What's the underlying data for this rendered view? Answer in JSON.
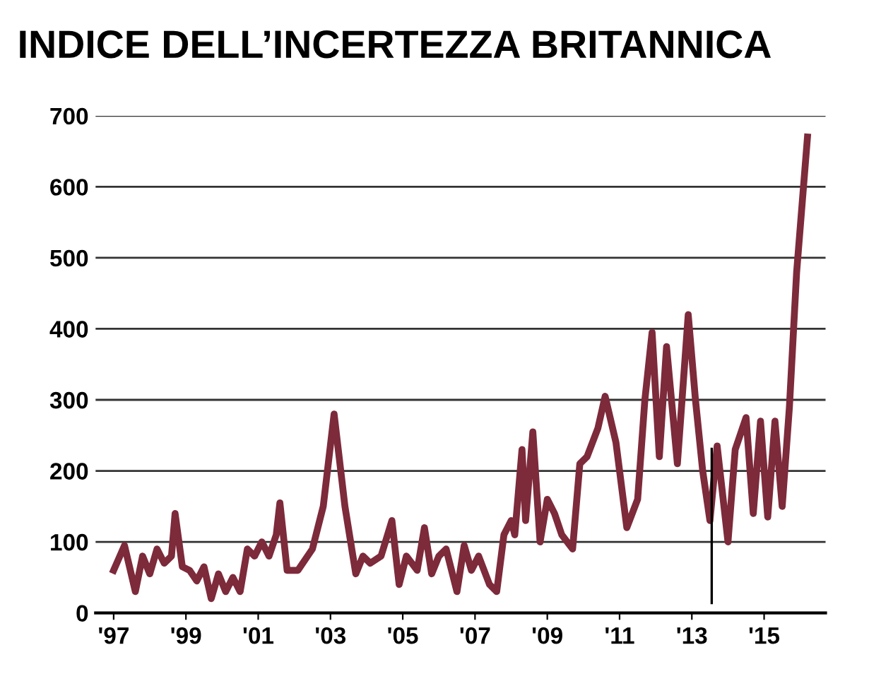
{
  "chart_data": {
    "type": "line",
    "title": "INDICE DELL’INCERTEZZA BRITANNICA",
    "x": [
      1997.0,
      1997.3,
      1997.6,
      1997.8,
      1998.0,
      1998.2,
      1998.4,
      1998.6,
      1998.7,
      1998.9,
      1999.1,
      1999.3,
      1999.5,
      1999.7,
      1999.9,
      2000.1,
      2000.3,
      2000.5,
      2000.7,
      2000.9,
      2001.1,
      2001.3,
      2001.5,
      2001.6,
      2001.8,
      2002.1,
      2002.5,
      2002.8,
      2003.1,
      2003.4,
      2003.7,
      2003.9,
      2004.1,
      2004.4,
      2004.7,
      2004.9,
      2005.1,
      2005.4,
      2005.6,
      2005.8,
      2006.0,
      2006.2,
      2006.5,
      2006.7,
      2006.9,
      2007.1,
      2007.4,
      2007.6,
      2007.8,
      2008.0,
      2008.1,
      2008.3,
      2008.4,
      2008.6,
      2008.8,
      2009.0,
      2009.2,
      2009.4,
      2009.7,
      2009.9,
      2010.1,
      2010.4,
      2010.6,
      2010.9,
      2011.2,
      2011.5,
      2011.7,
      2011.9,
      2012.1,
      2012.3,
      2012.6,
      2012.9,
      2013.1,
      2013.3,
      2013.5,
      2013.7,
      2014.0,
      2014.2,
      2014.5,
      2014.7,
      2014.9,
      2015.1,
      2015.3,
      2015.5,
      2015.7,
      2015.9,
      2016.2
    ],
    "series": [
      {
        "color": "#7d2a3b",
        "values": [
          60,
          95,
          30,
          80,
          55,
          90,
          70,
          80,
          140,
          65,
          60,
          45,
          65,
          20,
          55,
          30,
          50,
          30,
          90,
          80,
          100,
          80,
          110,
          155,
          60,
          60,
          90,
          150,
          280,
          150,
          55,
          80,
          70,
          80,
          130,
          40,
          80,
          60,
          120,
          55,
          80,
          90,
          30,
          95,
          60,
          80,
          40,
          30,
          110,
          130,
          110,
          230,
          130,
          255,
          100,
          160,
          140,
          110,
          90,
          210,
          220,
          260,
          305,
          240,
          120,
          160,
          300,
          395,
          220,
          375,
          210,
          420,
          300,
          200,
          130,
          235,
          100,
          230,
          275,
          140,
          270,
          135,
          270,
          150,
          290,
          480,
          670
        ]
      }
    ],
    "xlim": [
      1996.5,
      2016.7
    ],
    "ylim": [
      0,
      700
    ],
    "xticks": [
      {
        "value": 1997,
        "label": "'97"
      },
      {
        "value": 1999,
        "label": "'99"
      },
      {
        "value": 2001,
        "label": "'01"
      },
      {
        "value": 2003,
        "label": "'03"
      },
      {
        "value": 2005,
        "label": "'05"
      },
      {
        "value": 2007,
        "label": "'07"
      },
      {
        "value": 2009,
        "label": "'09"
      },
      {
        "value": 2011,
        "label": "'11"
      },
      {
        "value": 2013,
        "label": "'13"
      },
      {
        "value": 2015,
        "label": "'15"
      }
    ],
    "yticks": [
      0,
      100,
      200,
      300,
      400,
      500,
      600,
      700
    ],
    "grid": "y",
    "ref_lines": [
      {
        "axis": "x",
        "value": 2013.55,
        "color": "#000000"
      }
    ]
  }
}
